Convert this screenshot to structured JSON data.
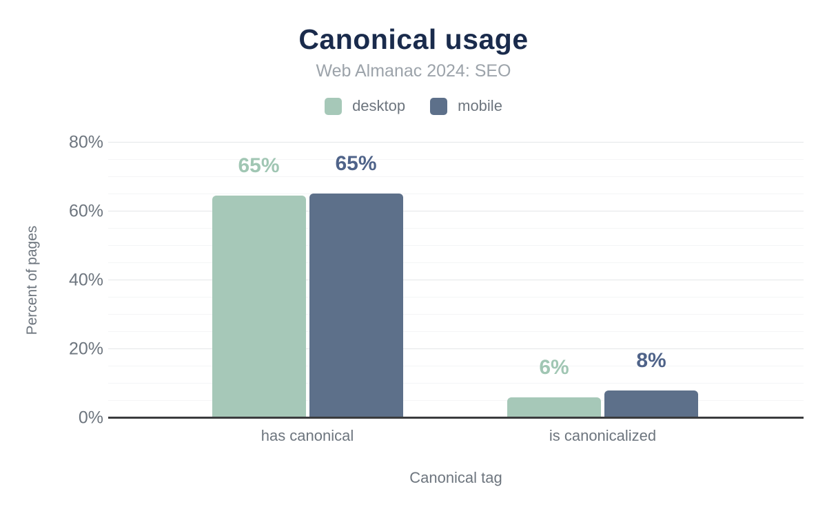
{
  "figure": {
    "title": "Canonical usage",
    "subtitle": "Web Almanac 2024: SEO"
  },
  "legend": {
    "items": [
      {
        "label": "desktop",
        "color": "#a6c8b8"
      },
      {
        "label": "mobile",
        "color": "#5d708a"
      }
    ]
  },
  "y_axis": {
    "title": "Percent of pages",
    "ticks": [
      {
        "value": 80,
        "label": "80%"
      },
      {
        "value": 60,
        "label": "60%"
      },
      {
        "value": 40,
        "label": "40%"
      },
      {
        "value": 20,
        "label": "20%"
      },
      {
        "value": 0,
        "label": "0%"
      }
    ]
  },
  "x_axis": {
    "title": "Canonical tag",
    "categories": [
      "has canonical",
      "is canonicalized"
    ]
  },
  "chart_data": {
    "type": "bar",
    "title": "Canonical usage",
    "subtitle": "Web Almanac 2024: SEO",
    "categories": [
      "has canonical",
      "is canonicalized"
    ],
    "series": [
      {
        "name": "desktop",
        "values": [
          64.7,
          6
        ],
        "labels": [
          "65%",
          "6%"
        ],
        "color": "#a6c8b8",
        "label_color": "#a0c6b3"
      },
      {
        "name": "mobile",
        "values": [
          65.3,
          8
        ],
        "labels": [
          "65%",
          "8%"
        ],
        "color": "#5d708a",
        "label_color": "#4f6389"
      }
    ],
    "xlabel": "Canonical tag",
    "ylabel": "Percent of pages",
    "ylim": [
      0,
      80
    ],
    "ytick_step": 20,
    "minor_gridline_step": 5,
    "grid": true,
    "legend_position": "top",
    "bar_value_labels_shown": true
  },
  "colors": {
    "title": "#1a2b4c",
    "subtitle": "#9ca3aa",
    "axis_text": "#6d757e",
    "major_gridline": "#e4e6e8",
    "minor_gridline": "#f4f5f6",
    "baseline": "#3a3b3d",
    "background": "#ffffff"
  }
}
